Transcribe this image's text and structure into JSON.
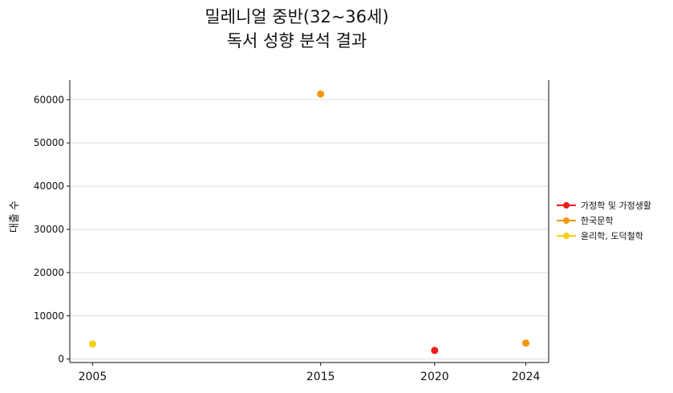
{
  "title_lines": [
    "밀레니얼 중반(32~36세)",
    "독서 성향 분석 결과"
  ],
  "chart_data": {
    "type": "scatter",
    "title": "밀레니얼 중반(32~36세) 독서 성향 분석 결과",
    "xlabel": "",
    "ylabel": "대출 수",
    "x_ticks": [
      2005,
      2015,
      2020,
      2024
    ],
    "y_ticks": [
      0,
      10000,
      20000,
      30000,
      40000,
      50000,
      60000
    ],
    "xlim": [
      2004,
      2025
    ],
    "ylim": [
      -800,
      64500
    ],
    "grid": "horizontal",
    "legend_position": "right",
    "series": [
      {
        "name": "가정학 및 가정생활",
        "color": "#ee1c1c",
        "points": [
          {
            "x": 2020,
            "y": 2000
          }
        ]
      },
      {
        "name": "한국문학",
        "color": "#f5960a",
        "points": [
          {
            "x": 2015,
            "y": 61300
          },
          {
            "x": 2024,
            "y": 3700
          }
        ]
      },
      {
        "name": "윤리학, 도덕철학",
        "color": "#f7d010",
        "points": [
          {
            "x": 2005,
            "y": 3500
          }
        ]
      }
    ]
  }
}
